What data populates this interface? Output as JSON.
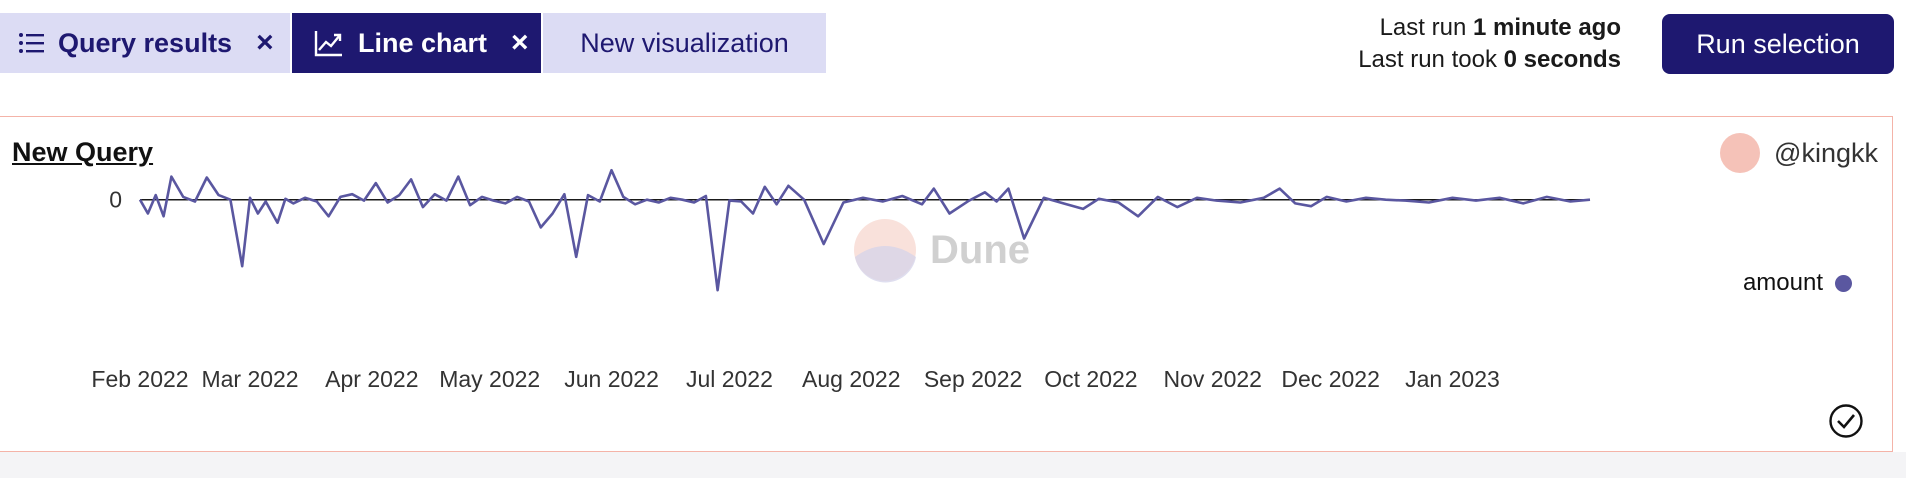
{
  "tabs": [
    {
      "label": "Query results",
      "icon": "list-icon",
      "closable": true,
      "active": false
    },
    {
      "label": "Line chart",
      "icon": "line-chart-icon",
      "closable": true,
      "active": true
    },
    {
      "label": "New visualization",
      "closable": false,
      "active": false
    }
  ],
  "run_info": {
    "last_run_prefix": "Last run",
    "last_run_value": "1 minute ago",
    "took_prefix": "Last run took",
    "took_value": "0 seconds"
  },
  "run_button": {
    "label": "Run selection"
  },
  "panel": {
    "title": "New Query",
    "owner": "@kingkk",
    "watermark": "Dune",
    "legend": "amount"
  },
  "colors": {
    "accent": "#1e1870",
    "series": "#5a57a0",
    "border": "#f4b3a8",
    "tab_bg": "#dcdcf4"
  },
  "chart_data": {
    "type": "line",
    "title": "New Query",
    "xlabel": "",
    "ylabel": "",
    "y_ticks": [
      "0"
    ],
    "x_ticks": [
      "Feb 2022",
      "Mar 2022",
      "Apr 2022",
      "May 2022",
      "Jun 2022",
      "Jul 2022",
      "Aug 2022",
      "Sep 2022",
      "Oct 2022",
      "Nov 2022",
      "Dec 2022",
      "Jan 2023"
    ],
    "x_range": [
      "2022-02-01",
      "2023-02-05"
    ],
    "ylim": [
      -100,
      30
    ],
    "legend_position": "right",
    "series": [
      {
        "name": "amount",
        "x": [
          "2022-02-01",
          "2022-02-03",
          "2022-02-05",
          "2022-02-07",
          "2022-02-09",
          "2022-02-12",
          "2022-02-15",
          "2022-02-18",
          "2022-02-21",
          "2022-02-24",
          "2022-02-27",
          "2022-03-01",
          "2022-03-03",
          "2022-03-05",
          "2022-03-08",
          "2022-03-10",
          "2022-03-12",
          "2022-03-15",
          "2022-03-18",
          "2022-03-21",
          "2022-03-24",
          "2022-03-27",
          "2022-03-30",
          "2022-04-02",
          "2022-04-05",
          "2022-04-08",
          "2022-04-11",
          "2022-04-14",
          "2022-04-17",
          "2022-04-20",
          "2022-04-23",
          "2022-04-26",
          "2022-04-29",
          "2022-05-02",
          "2022-05-05",
          "2022-05-08",
          "2022-05-11",
          "2022-05-14",
          "2022-05-17",
          "2022-05-20",
          "2022-05-23",
          "2022-05-26",
          "2022-05-29",
          "2022-06-01",
          "2022-06-04",
          "2022-06-07",
          "2022-06-10",
          "2022-06-13",
          "2022-06-16",
          "2022-06-19",
          "2022-06-22",
          "2022-06-25",
          "2022-06-28",
          "2022-07-01",
          "2022-07-04",
          "2022-07-07",
          "2022-07-10",
          "2022-07-13",
          "2022-07-16",
          "2022-07-20",
          "2022-07-25",
          "2022-07-30",
          "2022-08-04",
          "2022-08-09",
          "2022-08-14",
          "2022-08-19",
          "2022-08-22",
          "2022-08-26",
          "2022-08-31",
          "2022-09-04",
          "2022-09-07",
          "2022-09-10",
          "2022-09-14",
          "2022-09-19",
          "2022-09-24",
          "2022-09-29",
          "2022-10-03",
          "2022-10-08",
          "2022-10-13",
          "2022-10-18",
          "2022-10-23",
          "2022-10-28",
          "2022-11-02",
          "2022-11-08",
          "2022-11-14",
          "2022-11-18",
          "2022-11-22",
          "2022-11-26",
          "2022-11-30",
          "2022-12-05",
          "2022-12-10",
          "2022-12-15",
          "2022-12-20",
          "2022-12-26",
          "2023-01-01",
          "2023-01-07",
          "2023-01-13",
          "2023-01-19",
          "2023-01-25",
          "2023-01-31",
          "2023-02-05"
        ],
        "y": [
          0,
          -15,
          5,
          -18,
          25,
          3,
          -2,
          24,
          5,
          0,
          -72,
          2,
          -15,
          -2,
          -25,
          1,
          -4,
          2,
          -2,
          -18,
          3,
          6,
          -1,
          18,
          -3,
          5,
          22,
          -8,
          6,
          -1,
          25,
          -6,
          3,
          -1,
          -4,
          3,
          -2,
          -30,
          -15,
          6,
          -62,
          5,
          -2,
          32,
          3,
          -5,
          0,
          -3,
          2,
          0,
          -3,
          4,
          -98,
          -1,
          -2,
          -15,
          14,
          -5,
          15,
          0,
          -48,
          -3,
          2,
          -2,
          4,
          -5,
          12,
          -15,
          -1,
          8,
          -2,
          12,
          -42,
          2,
          -4,
          -10,
          1,
          -3,
          -18,
          3,
          -8,
          2,
          -1,
          -3,
          2,
          12,
          -4,
          -7,
          3,
          -2,
          2,
          0,
          -1,
          -3,
          2,
          -1,
          2,
          -4,
          3,
          -2,
          0
        ]
      }
    ]
  }
}
